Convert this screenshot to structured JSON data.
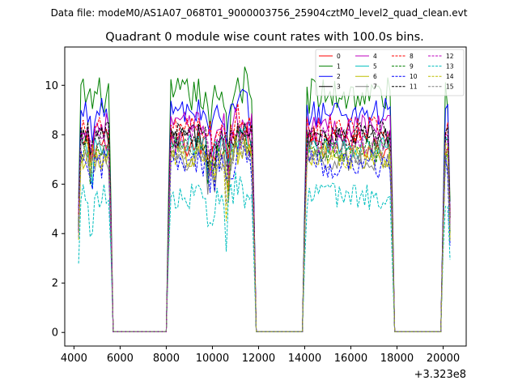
{
  "chart_data": {
    "type": "line",
    "suptitle": "Data file: modeM0/AS1A07_068T01_9000003756_25904cztM0_level2_quad_clean.evt",
    "title": "Quadrant 0 module wise count rates with 100.0s bins.",
    "xlabel": "",
    "ylabel": "",
    "x_offset_label": "+3.323e8",
    "xlim": [
      3600,
      21000
    ],
    "ylim": [
      -0.55,
      11.55
    ],
    "xticks": [
      4000,
      6000,
      8000,
      10000,
      12000,
      14000,
      16000,
      18000,
      20000
    ],
    "xtick_labels": [
      "4000",
      "6000",
      "8000",
      "10000",
      "12000",
      "14000",
      "16000",
      "18000",
      "20000"
    ],
    "yticks": [
      0,
      2,
      4,
      6,
      8,
      10
    ],
    "ytick_labels": [
      "0",
      "2",
      "4",
      "6",
      "8",
      "10"
    ],
    "bin_width": 100,
    "segments": [
      {
        "start": 4200,
        "end": 5600
      },
      {
        "start": 8100,
        "end": 11800
      },
      {
        "start": 14000,
        "end": 17800
      },
      {
        "start": 20000,
        "end": 20300
      }
    ],
    "legend_location": "upper right",
    "series": [
      {
        "name": "0",
        "color": "#ff0000",
        "dash": "solid",
        "base": 7.6,
        "spread": 0.55
      },
      {
        "name": "1",
        "color": "#008000",
        "dash": "solid",
        "base": 9.6,
        "spread": 0.75
      },
      {
        "name": "2",
        "color": "#0000ff",
        "dash": "solid",
        "base": 8.9,
        "spread": 0.6
      },
      {
        "name": "3",
        "color": "#000000",
        "dash": "solid",
        "base": 7.9,
        "spread": 0.55
      },
      {
        "name": "4",
        "color": "#bf00bf",
        "dash": "solid",
        "base": 8.4,
        "spread": 0.55
      },
      {
        "name": "5",
        "color": "#00bfbf",
        "dash": "solid",
        "base": 7.5,
        "spread": 0.5
      },
      {
        "name": "6",
        "color": "#bfbf00",
        "dash": "solid",
        "base": 7.1,
        "spread": 0.5
      },
      {
        "name": "7",
        "color": "#808080",
        "dash": "solid",
        "base": 7.0,
        "spread": 0.5
      },
      {
        "name": "8",
        "color": "#ff0000",
        "dash": "dashed",
        "base": 8.2,
        "spread": 0.55
      },
      {
        "name": "9",
        "color": "#008000",
        "dash": "dashed",
        "base": 7.4,
        "spread": 0.55
      },
      {
        "name": "10",
        "color": "#0000ff",
        "dash": "dashed",
        "base": 6.8,
        "spread": 0.6
      },
      {
        "name": "11",
        "color": "#000000",
        "dash": "dashed",
        "base": 8.0,
        "spread": 0.55
      },
      {
        "name": "12",
        "color": "#bf00bf",
        "dash": "dashed",
        "base": 7.8,
        "spread": 0.55
      },
      {
        "name": "13",
        "color": "#00bfbf",
        "dash": "dashed",
        "base": 5.5,
        "spread": 0.55
      },
      {
        "name": "14",
        "color": "#bfbf00",
        "dash": "dashed",
        "base": 7.2,
        "spread": 0.55
      },
      {
        "name": "15",
        "color": "#808080",
        "dash": "dashed",
        "base": 7.3,
        "spread": 0.5
      }
    ]
  }
}
